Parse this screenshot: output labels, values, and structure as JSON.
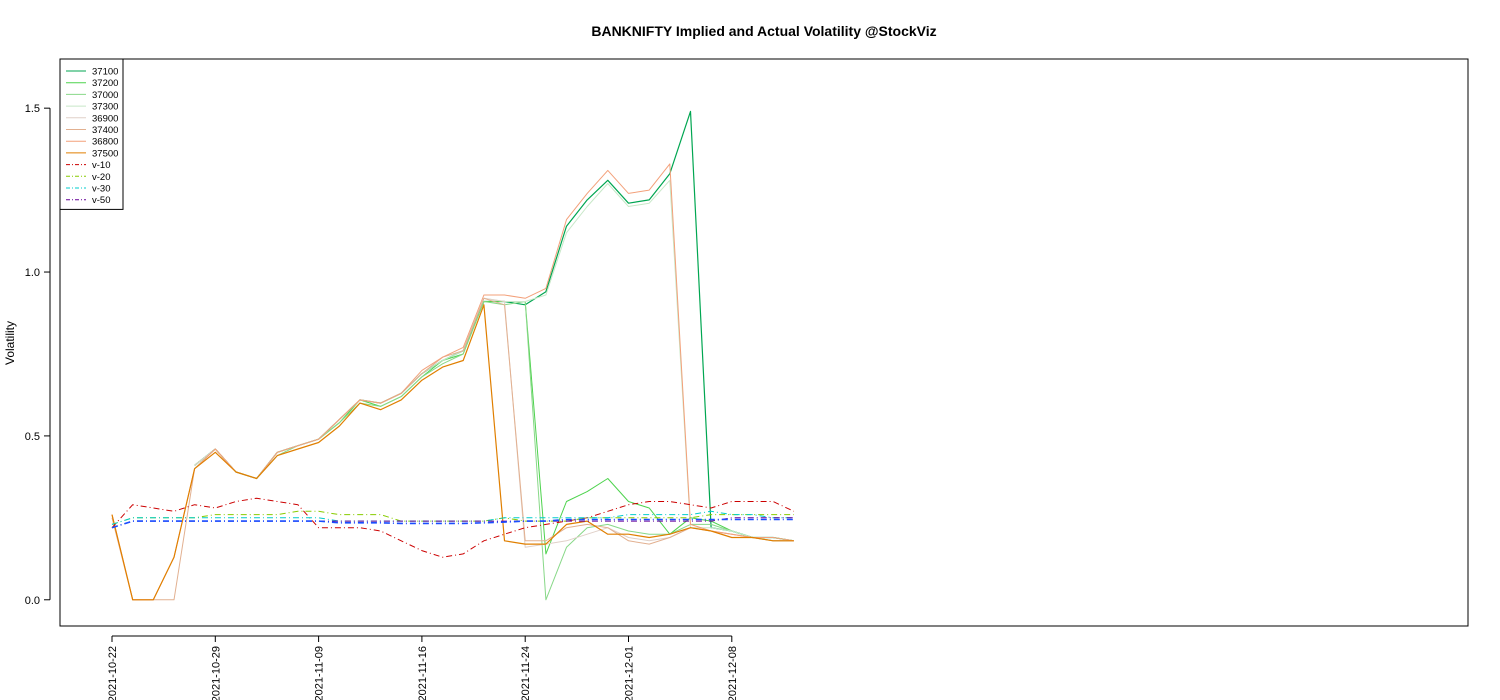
{
  "chart_data": {
    "type": "line",
    "title": "BANKNIFTY Implied and Actual Volatility @StockViz",
    "xlabel": "",
    "ylabel": "Volatility",
    "ylim": [
      -0.08,
      1.65
    ],
    "yticks": [
      0.0,
      0.5,
      1.0,
      1.5
    ],
    "ytick_labels": [
      "0.0",
      "0.5",
      "1.0",
      "1.5"
    ],
    "xtick_labels": [
      "2021-10-22",
      "2021-10-29",
      "2021-11-09",
      "2021-11-16",
      "2021-11-24",
      "2021-12-01",
      "2021-12-08"
    ],
    "xtick_index": [
      0,
      5,
      10,
      15,
      20,
      25,
      30
    ],
    "x": [
      "2021-10-22",
      "2021-10-25",
      "2021-10-26",
      "2021-10-27",
      "2021-10-28",
      "2021-10-29",
      "2021-11-01",
      "2021-11-02",
      "2021-11-03",
      "2021-11-04",
      "2021-11-09",
      "2021-11-10",
      "2021-11-11",
      "2021-11-12",
      "2021-11-15",
      "2021-11-16",
      "2021-11-17",
      "2021-11-18",
      "2021-11-22",
      "2021-11-23",
      "2021-11-24",
      "2021-11-25",
      "2021-11-26",
      "2021-11-29",
      "2021-11-30",
      "2021-12-01",
      "2021-12-02",
      "2021-12-03",
      "2021-12-06",
      "2021-12-07",
      "2021-12-08",
      "2021-12-09",
      "2021-12-10",
      "2021-12-13"
    ],
    "grid": false,
    "legend_position": "top-left",
    "series": [
      {
        "name": "37100",
        "color": "#00a651",
        "dash": "solid",
        "width": 1.2,
        "values": [
          0.24,
          null,
          null,
          null,
          0.41,
          0.46,
          0.39,
          0.37,
          0.45,
          0.47,
          0.49,
          0.55,
          0.61,
          0.6,
          0.63,
          0.69,
          0.73,
          0.76,
          0.91,
          0.91,
          0.9,
          0.94,
          1.14,
          1.22,
          1.28,
          1.21,
          1.22,
          1.3,
          1.49,
          0.22,
          0.21,
          0.19,
          0.19,
          0.18
        ]
      },
      {
        "name": "37200",
        "color": "#4dd34d",
        "dash": "solid",
        "width": 1.0,
        "values": [
          0.24,
          null,
          null,
          null,
          0.41,
          0.46,
          0.39,
          0.37,
          0.45,
          0.47,
          0.49,
          0.54,
          0.61,
          0.59,
          0.62,
          0.68,
          0.73,
          0.75,
          0.91,
          0.91,
          0.91,
          0.14,
          0.3,
          0.33,
          0.37,
          0.3,
          0.28,
          0.2,
          0.25,
          0.24,
          0.21,
          0.19,
          0.19,
          0.18
        ]
      },
      {
        "name": "37000",
        "color": "#88d888",
        "dash": "solid",
        "width": 1.0,
        "values": [
          0.24,
          null,
          null,
          null,
          0.4,
          0.46,
          0.39,
          0.37,
          0.44,
          0.47,
          0.49,
          0.54,
          0.6,
          0.59,
          0.62,
          0.68,
          0.72,
          0.75,
          0.91,
          0.9,
          0.91,
          0.0,
          0.16,
          0.22,
          0.23,
          0.21,
          0.2,
          0.2,
          0.23,
          0.23,
          0.21,
          0.19,
          0.18,
          0.18
        ]
      },
      {
        "name": "37300",
        "color": "#c8e8c8",
        "dash": "solid",
        "width": 1.0,
        "values": [
          0.24,
          null,
          null,
          null,
          0.41,
          0.46,
          0.39,
          0.37,
          0.45,
          0.47,
          0.49,
          0.55,
          0.61,
          0.6,
          0.63,
          0.69,
          0.73,
          0.76,
          0.92,
          0.91,
          0.91,
          0.93,
          1.12,
          1.2,
          1.27,
          1.2,
          1.21,
          1.28,
          0.22,
          0.22,
          0.21,
          0.19,
          0.19,
          0.18
        ]
      },
      {
        "name": "36900",
        "color": "#e0d0c8",
        "dash": "solid",
        "width": 1.0,
        "values": [
          0.25,
          null,
          null,
          null,
          0.41,
          0.46,
          0.39,
          0.37,
          0.45,
          0.47,
          0.49,
          0.55,
          0.61,
          0.6,
          0.63,
          0.69,
          0.74,
          0.76,
          0.92,
          0.91,
          0.16,
          0.17,
          0.18,
          0.2,
          0.22,
          0.19,
          0.18,
          0.19,
          0.22,
          0.21,
          0.2,
          0.19,
          0.18,
          0.18
        ]
      },
      {
        "name": "37400",
        "color": "#e2b090",
        "dash": "solid",
        "width": 1.0,
        "values": [
          0.25,
          0.0,
          0.0,
          0.0,
          0.4,
          0.46,
          0.39,
          0.37,
          0.45,
          0.47,
          0.49,
          0.55,
          0.61,
          0.6,
          0.63,
          0.69,
          0.74,
          0.76,
          0.92,
          0.9,
          0.18,
          0.18,
          0.22,
          0.23,
          0.22,
          0.18,
          0.17,
          0.19,
          0.22,
          0.21,
          0.2,
          0.19,
          0.18,
          0.18
        ]
      },
      {
        "name": "36800",
        "color": "#f3a07a",
        "dash": "solid",
        "width": 1.0,
        "values": [
          0.26,
          0.0,
          0.0,
          0.13,
          0.4,
          0.46,
          0.39,
          0.37,
          0.45,
          0.47,
          0.49,
          0.55,
          0.61,
          0.6,
          0.63,
          0.7,
          0.74,
          0.77,
          0.93,
          0.93,
          0.92,
          0.95,
          1.16,
          1.24,
          1.31,
          1.24,
          1.25,
          1.33,
          0.23,
          0.21,
          0.2,
          0.19,
          0.19,
          0.18
        ]
      },
      {
        "name": "37500",
        "color": "#e07f00",
        "dash": "solid",
        "width": 1.2,
        "values": [
          0.26,
          0.0,
          0.0,
          0.13,
          0.4,
          0.45,
          0.39,
          0.37,
          0.44,
          0.46,
          0.48,
          0.53,
          0.6,
          0.58,
          0.61,
          0.67,
          0.71,
          0.73,
          0.9,
          0.18,
          0.17,
          0.17,
          0.23,
          0.24,
          0.2,
          0.2,
          0.19,
          0.2,
          0.22,
          0.21,
          0.19,
          0.19,
          0.18,
          0.18
        ]
      },
      {
        "name": "v-10",
        "color": "#cc0000",
        "dash": "dashdot",
        "width": 1.0,
        "values": [
          0.22,
          0.29,
          0.28,
          0.27,
          0.29,
          0.28,
          0.3,
          0.31,
          0.3,
          0.29,
          0.22,
          0.22,
          0.22,
          0.21,
          0.18,
          0.15,
          0.13,
          0.14,
          0.18,
          0.2,
          0.22,
          0.23,
          0.24,
          0.25,
          0.27,
          0.29,
          0.3,
          0.3,
          0.29,
          0.28,
          0.3,
          0.3,
          0.3,
          0.27
        ]
      },
      {
        "name": "v-20",
        "color": "#88cc00",
        "dash": "dashdot",
        "width": 1.0,
        "values": [
          0.23,
          0.25,
          0.25,
          0.25,
          0.25,
          0.26,
          0.26,
          0.26,
          0.26,
          0.27,
          0.27,
          0.26,
          0.26,
          0.26,
          0.24,
          0.24,
          0.24,
          0.24,
          0.24,
          0.25,
          0.24,
          0.24,
          0.24,
          0.25,
          0.25,
          0.25,
          0.25,
          0.25,
          0.25,
          0.26,
          0.26,
          0.26,
          0.26,
          0.26
        ]
      },
      {
        "name": "v-30",
        "color": "#00cccc",
        "dash": "dashdot",
        "width": 1.0,
        "values": [
          0.23,
          0.25,
          0.25,
          0.25,
          0.25,
          0.25,
          0.25,
          0.25,
          0.25,
          0.25,
          0.25,
          0.24,
          0.24,
          0.24,
          0.24,
          0.24,
          0.24,
          0.24,
          0.24,
          0.25,
          0.25,
          0.25,
          0.25,
          0.25,
          0.25,
          0.26,
          0.26,
          0.26,
          0.26,
          0.27,
          0.26,
          0.26,
          0.25,
          0.25
        ]
      },
      {
        "name": "v-50",
        "color": "#660099",
        "dash": "dashdot",
        "width": 1.0,
        "values": [
          0.22,
          0.24,
          0.24,
          0.24,
          0.24,
          0.24,
          0.24,
          0.24,
          0.24,
          0.24,
          0.24,
          0.24,
          0.24,
          0.24,
          0.24,
          0.24,
          0.24,
          0.24,
          0.24,
          0.24,
          0.24,
          0.24,
          0.24,
          0.24,
          0.24,
          0.24,
          0.24,
          0.24,
          0.24,
          0.24,
          0.25,
          0.25,
          0.25,
          0.25
        ]
      },
      {
        "name": "",
        "color": "#1a4dff",
        "dash": "dashdot",
        "width": 1.6,
        "values": [
          0.22,
          0.24,
          0.24,
          0.24,
          0.24,
          0.24,
          0.24,
          0.24,
          0.24,
          0.24,
          0.24,
          0.235,
          0.235,
          0.235,
          0.233,
          0.233,
          0.233,
          0.233,
          0.235,
          0.237,
          0.24,
          0.24,
          0.245,
          0.245,
          0.245,
          0.245,
          0.245,
          0.245,
          0.245,
          0.245,
          0.245,
          0.245,
          0.245,
          0.245
        ]
      }
    ]
  }
}
